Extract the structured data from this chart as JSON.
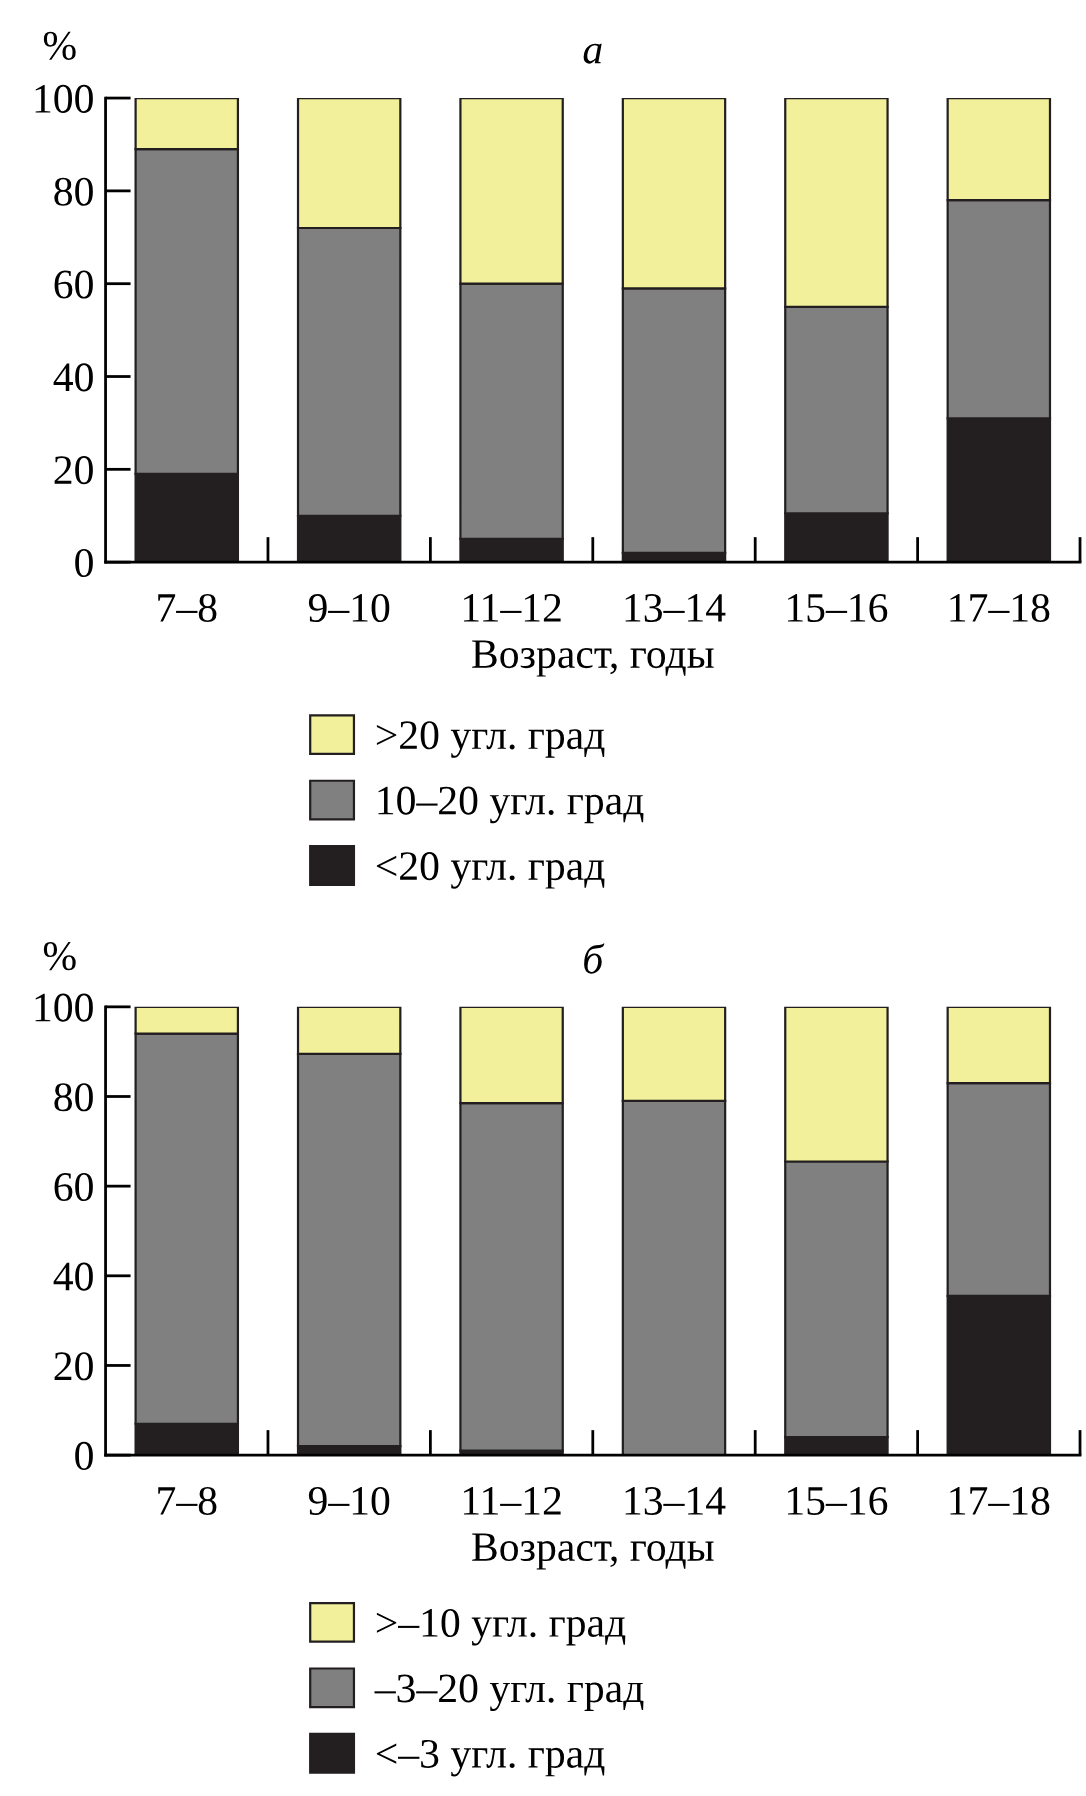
{
  "chart_data": [
    {
      "type": "bar",
      "stacked": true,
      "title": "а",
      "ylabel": "%",
      "xlabel": "Возраст, годы",
      "categories": [
        "7–8",
        "9–10",
        "11–12",
        "13–14",
        "15–16",
        "17–18"
      ],
      "series": [
        {
          "name": "<20 угл. град",
          "color": "#231f20",
          "values": [
            19,
            10,
            5,
            2,
            10.5,
            31
          ]
        },
        {
          "name": "10–20 угл. град",
          "color": "#808080",
          "values": [
            70,
            62,
            55,
            57,
            44.5,
            47
          ]
        },
        {
          "name": ">20 угл. град",
          "color": "#f2f09b",
          "values": [
            11,
            28,
            40,
            41,
            45,
            22
          ]
        }
      ],
      "ylim": [
        0,
        100
      ],
      "yticks": [
        0,
        20,
        40,
        60,
        80,
        100
      ],
      "legend": "bottom"
    },
    {
      "type": "bar",
      "stacked": true,
      "title": "б",
      "ylabel": "%",
      "xlabel": "Возраст, годы",
      "categories": [
        "7–8",
        "9–10",
        "11–12",
        "13–14",
        "15–16",
        "17–18"
      ],
      "series": [
        {
          "name": "<–3 угл. град",
          "color": "#231f20",
          "values": [
            7,
            2,
            1,
            0,
            4,
            35.5
          ]
        },
        {
          "name": "–3–20 угл. град",
          "color": "#808080",
          "values": [
            87,
            87.5,
            77.5,
            79,
            61.5,
            47.5
          ]
        },
        {
          "name": ">–10 угл. град",
          "color": "#f2f09b",
          "values": [
            6,
            10.5,
            21.5,
            21,
            34.5,
            17
          ]
        }
      ],
      "ylim": [
        0,
        100
      ],
      "yticks": [
        0,
        20,
        40,
        60,
        80,
        100
      ],
      "legend": "bottom"
    }
  ]
}
